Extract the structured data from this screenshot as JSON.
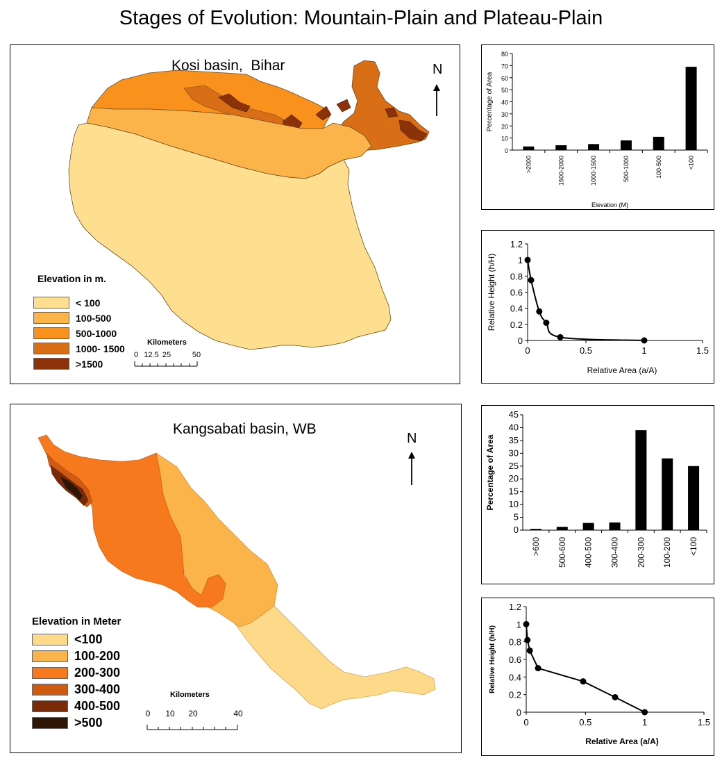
{
  "page": {
    "title": "Stages of Evolution:  Mountain-Plain and Plateau-Plain"
  },
  "maps": {
    "kosi": {
      "title": "Kosi basin,  Bihar",
      "north": "N",
      "legend_title": "Elevation in m.",
      "legend": [
        {
          "label": "< 100",
          "color": "#fddf8f"
        },
        {
          "label": "100-500",
          "color": "#fbb44a"
        },
        {
          "label": "500-1000",
          "color": "#f8921d"
        },
        {
          "label": "1000- 1500",
          "color": "#d86e15"
        },
        {
          "label": ">1500",
          "color": "#8b3208"
        }
      ],
      "scale_title": "Kilometers",
      "scale_ticks": [
        "0",
        "12.5",
        "25",
        "50"
      ]
    },
    "kangsabati": {
      "title": "Kangsabati basin, WB",
      "north": "N",
      "legend_title": "Elevation in Meter",
      "legend": [
        {
          "label": "<100",
          "color": "#fdd98a"
        },
        {
          "label": "100-200",
          "color": "#fbb44a"
        },
        {
          "label": "200-300",
          "color": "#f67a1d"
        },
        {
          "label": "300-400",
          "color": "#cf5a12"
        },
        {
          "label": "400-500",
          "color": "#7a2a06"
        },
        {
          "label": ">500",
          "color": "#2e1606"
        }
      ],
      "scale_title": "Kilometers",
      "scale_ticks": [
        "0",
        "10",
        "20",
        "40"
      ]
    }
  },
  "chart_data": [
    {
      "id": "kosi-bar",
      "type": "bar",
      "categories": [
        ">2000",
        "1500-2000",
        "1000-1500",
        "500-1000",
        "100-500",
        "<100"
      ],
      "values": [
        3,
        4,
        5,
        8,
        11,
        69
      ],
      "xlabel": "Elevation (M)",
      "ylabel": "Percentage of Area",
      "ylim": [
        0,
        80
      ],
      "yticks": [
        0,
        10,
        20,
        30,
        40,
        50,
        60,
        70,
        80
      ],
      "grid": false
    },
    {
      "id": "kosi-hypsometric",
      "type": "line",
      "x": [
        0,
        0.03,
        0.1,
        0.16,
        0.28,
        1
      ],
      "y": [
        1,
        0.75,
        0.36,
        0.22,
        0.04,
        0
      ],
      "xlabel": "Relative  Area (a/A)",
      "ylabel": "Relative  Height  (h/H)",
      "xlim": [
        0,
        1.5
      ],
      "ylim": [
        0,
        1.2
      ],
      "xticks": [
        0,
        0.5,
        1,
        1.5
      ],
      "yticks": [
        0,
        0.2,
        0.4,
        0.6,
        0.8,
        1,
        1.2
      ],
      "grid": false
    },
    {
      "id": "kangsabati-bar",
      "type": "bar",
      "categories": [
        ">600",
        "500-600",
        "400-500",
        "300-400",
        "200-300",
        "100-200",
        "<100"
      ],
      "values": [
        0.5,
        1.3,
        2.8,
        3,
        39,
        28,
        25
      ],
      "xlabel": "",
      "ylabel": "Percentage of Area",
      "ylim": [
        0,
        45
      ],
      "yticks": [
        0,
        5,
        10,
        15,
        20,
        25,
        30,
        35,
        40,
        45
      ],
      "grid": false
    },
    {
      "id": "kangsabati-hypsometric",
      "type": "line",
      "x": [
        0,
        0.01,
        0.03,
        0.1,
        0.48,
        0.75,
        1
      ],
      "y": [
        1,
        0.82,
        0.7,
        0.5,
        0.35,
        0.17,
        0
      ],
      "xlabel": "Relative Area (a/A)",
      "ylabel": "Relative Height (h/H)",
      "xlim": [
        0,
        1.5
      ],
      "ylim": [
        0,
        1.2
      ],
      "xticks": [
        0,
        0.5,
        1,
        1.5
      ],
      "yticks": [
        0,
        0.2,
        0.4,
        0.6,
        0.8,
        1,
        1.2
      ],
      "grid": false
    }
  ]
}
